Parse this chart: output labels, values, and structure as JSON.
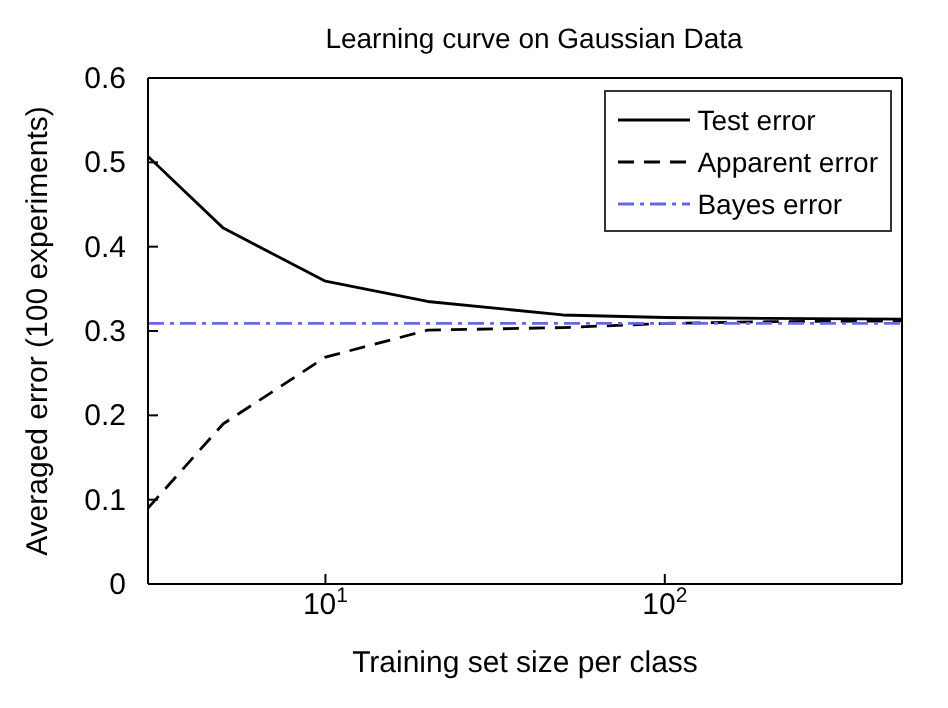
{
  "chart_data": {
    "type": "line",
    "title": "Learning curve on Gaussian Data",
    "xlabel": "Training set size per class",
    "ylabel": "Averaged error (100 experiments)",
    "log": "x",
    "xlim": [
      3,
      500
    ],
    "xticks": [
      {
        "value": 10,
        "label": "10$^{1}$"
      },
      {
        "value": 100,
        "label": "10$^{2}$"
      }
    ],
    "ylim": [
      0,
      0.6
    ],
    "yticks": [
      0,
      0.1,
      0.2,
      0.3,
      0.4,
      0.5,
      0.6
    ],
    "grid": false,
    "legend": "top right",
    "marker": "none",
    "series": [
      {
        "name": "Test error",
        "color": "#000000",
        "line_style": "solid",
        "x": [
          3,
          5,
          10,
          20,
          50,
          100,
          200,
          500
        ],
        "values": [
          0.507,
          0.422,
          0.359,
          0.335,
          0.319,
          0.316,
          0.315,
          0.314
        ]
      },
      {
        "name": "Apparent error",
        "color": "#000000",
        "line_style": "dashed",
        "x": [
          3,
          5,
          10,
          20,
          50,
          100,
          200,
          500
        ],
        "values": [
          0.09,
          0.19,
          0.269,
          0.301,
          0.304,
          0.309,
          0.311,
          0.312
        ]
      },
      {
        "name": "Bayes error",
        "color": "#6666ee",
        "line_style": "dashdot",
        "x": [
          3,
          500
        ],
        "values": [
          0.309,
          0.309
        ]
      }
    ]
  }
}
